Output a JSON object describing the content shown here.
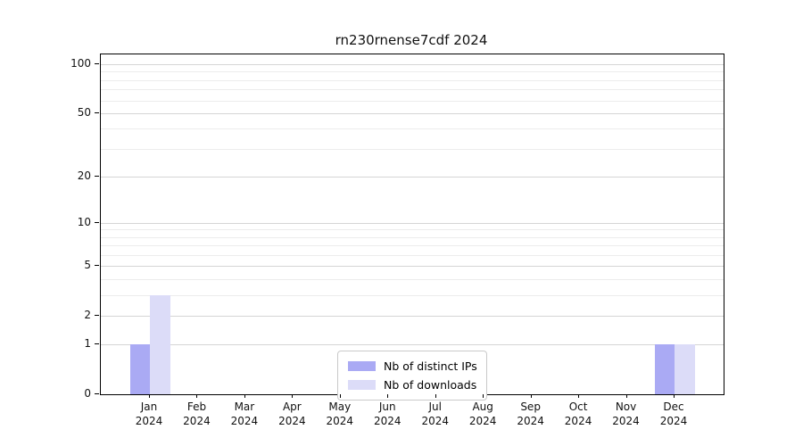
{
  "title": "rn230rnense7cdf 2024",
  "chart_data": {
    "type": "bar",
    "title": "rn230rnense7cdf 2024",
    "xlabel": "",
    "ylabel": "",
    "year": "2024",
    "categories": [
      "Jan",
      "Feb",
      "Mar",
      "Apr",
      "May",
      "Jun",
      "Jul",
      "Aug",
      "Sep",
      "Oct",
      "Nov",
      "Dec"
    ],
    "series": [
      {
        "name": "Nb of distinct IPs",
        "color": "#aaaaf4",
        "values": [
          1,
          0,
          0,
          0,
          0,
          0,
          0,
          0,
          0,
          0,
          0,
          1
        ]
      },
      {
        "name": "Nb of downloads",
        "color": "#dcdcf8",
        "values": [
          3,
          0,
          0,
          0,
          0,
          0,
          0,
          0,
          0,
          0,
          0,
          1
        ]
      }
    ],
    "yscale": "log1p",
    "ylim": [
      0,
      115
    ],
    "y_ticks": [
      0,
      1,
      2,
      5,
      10,
      20,
      50,
      100
    ],
    "y_minor_gridlines": [
      3,
      4,
      6,
      7,
      8,
      9,
      30,
      40,
      60,
      70,
      80,
      90
    ],
    "grid": "on",
    "legend_position": "bottom-center"
  },
  "colors": {
    "grid_major": "#d5d5d5",
    "grid_minor": "#ececec",
    "axis_frame": "#000000",
    "bar_distinct_ips": "#aaaaf4",
    "bar_downloads": "#dcdcf8",
    "legend_border": "#c9c9c9"
  }
}
